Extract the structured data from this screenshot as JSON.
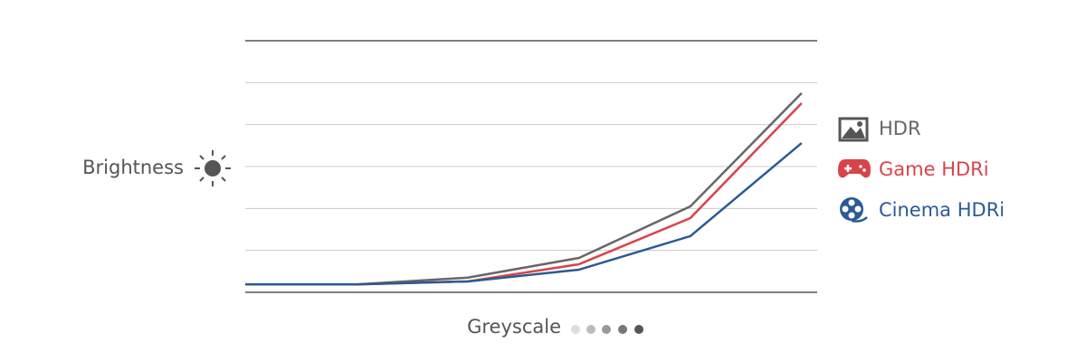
{
  "chart_data": {
    "type": "line",
    "y_label": "Brightness",
    "x_label": "Greyscale",
    "x": [
      0,
      1,
      2,
      3,
      4,
      5
    ],
    "xlim": [
      0,
      5.14
    ],
    "ylim": [
      0,
      6
    ],
    "yticks": [
      0,
      1,
      2,
      3,
      4,
      5,
      6
    ],
    "grid": true,
    "legend": "right",
    "series": [
      {
        "name": "HDR",
        "color": "#666666",
        "values": [
          0.19,
          0.19,
          0.35,
          0.82,
          2.05,
          4.75
        ]
      },
      {
        "name": "Game HDRi",
        "color": "#d9434a",
        "values": [
          0.19,
          0.19,
          0.26,
          0.67,
          1.77,
          4.51
        ]
      },
      {
        "name": "Cinema HDRi",
        "color": "#2b5a94",
        "values": [
          0.19,
          0.19,
          0.26,
          0.54,
          1.34,
          3.56
        ]
      }
    ]
  }
}
